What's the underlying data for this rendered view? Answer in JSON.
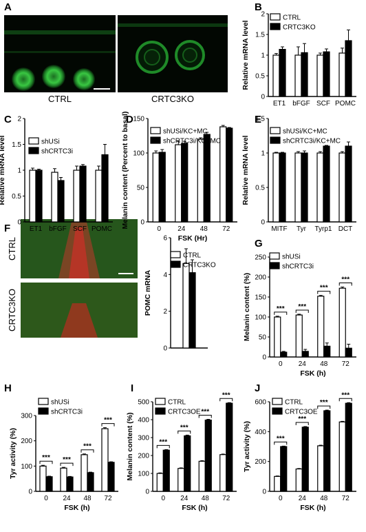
{
  "panels": {
    "A": {
      "letter": "A",
      "labels": [
        "CTRL",
        "CRTC3KO"
      ]
    },
    "F": {
      "letter": "F",
      "labels": [
        "CTRL",
        "CRTC3KO"
      ]
    }
  },
  "colors": {
    "bar_dark": "#000000",
    "bar_light": "#ffffff",
    "fluor_green": "#3fd24a",
    "fluor_red": "#c0392b"
  },
  "chart_data": [
    {
      "id": "B",
      "letter": "B",
      "type": "bar",
      "ylabel": "Relative mRNA level",
      "xlabel": "",
      "categories": [
        "ET1",
        "bFGF",
        "SCF",
        "POMC"
      ],
      "ylim": [
        0,
        2.0
      ],
      "yticks": [
        0,
        0.5,
        1.0,
        1.5,
        2.0
      ],
      "series": [
        {
          "name": "CTRL",
          "values": [
            1.0,
            1.0,
            1.0,
            1.05
          ],
          "err": [
            0.04,
            0.2,
            0.05,
            0.12
          ]
        },
        {
          "name": "CRTC3KO",
          "values": [
            1.14,
            1.06,
            1.08,
            1.35
          ],
          "err": [
            0.06,
            0.22,
            0.07,
            0.26
          ]
        }
      ]
    },
    {
      "id": "C",
      "letter": "C",
      "type": "bar",
      "ylabel": "Relative mRNA level",
      "xlabel": "",
      "categories": [
        "ET1",
        "bFGF",
        "SCF",
        "POMC"
      ],
      "ylim": [
        0,
        2.0
      ],
      "yticks": [
        0,
        0.5,
        1.0,
        1.5,
        2.0
      ],
      "series": [
        {
          "name": "shUSi",
          "values": [
            1.0,
            0.96,
            1.0,
            1.0
          ],
          "err": [
            0.04,
            0.07,
            0.08,
            0.08
          ]
        },
        {
          "name": "shCRTC3i",
          "values": [
            1.0,
            0.8,
            1.08,
            1.3
          ],
          "err": [
            0.02,
            0.06,
            0.03,
            0.2
          ]
        }
      ]
    },
    {
      "id": "D",
      "letter": "D",
      "type": "bar",
      "ylabel": "Melanin content (Percent to basal)",
      "xlabel": "FSK (Hr)",
      "categories": [
        "0",
        "24",
        "48",
        "72"
      ],
      "ylim": [
        0,
        150
      ],
      "yticks": [
        0,
        50,
        100,
        150
      ],
      "series": [
        {
          "name": "shUSi/KC+MC",
          "values": [
            100,
            112,
            120,
            138
          ],
          "err": [
            3,
            5,
            2,
            2
          ]
        },
        {
          "name": "shCRTC3i/KC+MC",
          "values": [
            101,
            114,
            127,
            136
          ],
          "err": [
            4,
            3,
            3,
            1
          ]
        }
      ]
    },
    {
      "id": "E",
      "letter": "E",
      "type": "bar",
      "ylabel": "Relative mRNA level",
      "xlabel": "",
      "categories": [
        "MITF",
        "Tyr",
        "Tyrp1",
        "DCT"
      ],
      "ylim": [
        0,
        1.5
      ],
      "yticks": [
        0,
        0.5,
        1.0,
        1.5
      ],
      "series": [
        {
          "name": "shUSi/KC+MC",
          "values": [
            1.0,
            1.0,
            1.0,
            1.0
          ],
          "err": [
            0.01,
            0.02,
            0.02,
            0.02
          ]
        },
        {
          "name": "shCRTC3i/KC+MC",
          "values": [
            1.0,
            1.0,
            1.1,
            1.1
          ],
          "err": [
            0.01,
            0.03,
            0.01,
            0.06
          ]
        }
      ]
    },
    {
      "id": "Fbar",
      "letter": "",
      "type": "bar",
      "ylabel": "POMC mRNA",
      "xlabel": "",
      "categories": [
        ""
      ],
      "ylim": [
        0,
        6
      ],
      "yticks": [
        0,
        2,
        4,
        6
      ],
      "series": [
        {
          "name": "CTRL",
          "values": [
            4.6
          ],
          "err": [
            0.8
          ]
        },
        {
          "name": "CRTC3KO",
          "values": [
            4.1
          ],
          "err": [
            0.7
          ]
        }
      ]
    },
    {
      "id": "G",
      "letter": "G",
      "type": "bar",
      "ylabel": "Melanin content (%)",
      "xlabel": "FSK (h)",
      "categories": [
        "0",
        "24",
        "48",
        "72"
      ],
      "ylim": [
        0,
        250
      ],
      "yticks": [
        0,
        50,
        100,
        150,
        200,
        250
      ],
      "sig": "***",
      "series": [
        {
          "name": "shUSi",
          "values": [
            100,
            105,
            152,
            172
          ],
          "err": [
            2,
            2,
            2,
            3
          ]
        },
        {
          "name": "shCRTC3i",
          "values": [
            12,
            14,
            27,
            22
          ],
          "err": [
            2,
            5,
            8,
            10
          ]
        }
      ]
    },
    {
      "id": "H",
      "letter": "H",
      "type": "bar",
      "ylabel": "Tyr activity (%)",
      "xlabel": "FSK (h)",
      "categories": [
        "0",
        "24",
        "48",
        "72"
      ],
      "ylim": [
        0,
        300
      ],
      "yticks": [
        0,
        100,
        200,
        300
      ],
      "sig": "***",
      "series": [
        {
          "name": "shUSi",
          "values": [
            100,
            92,
            145,
            248
          ],
          "err": [
            3,
            3,
            3,
            4
          ]
        },
        {
          "name": "shCRTC3i",
          "values": [
            58,
            57,
            74,
            115
          ],
          "err": [
            2,
            2,
            2,
            2
          ]
        }
      ]
    },
    {
      "id": "I",
      "letter": "I",
      "type": "bar",
      "ylabel": "Melanin content (%)",
      "xlabel": "FSK (h)",
      "categories": [
        "0",
        "24",
        "48",
        "72"
      ],
      "ylim": [
        0,
        500
      ],
      "yticks": [
        0,
        100,
        200,
        300,
        400,
        500
      ],
      "sig": "***",
      "series": [
        {
          "name": "CTRL",
          "values": [
            100,
            128,
            168,
            205
          ],
          "err": [
            3,
            3,
            3,
            3
          ]
        },
        {
          "name": "CRTC3OE",
          "values": [
            230,
            310,
            398,
            492
          ],
          "err": [
            3,
            4,
            4,
            3
          ]
        }
      ]
    },
    {
      "id": "J",
      "letter": "J",
      "type": "bar",
      "ylabel": "Tyr activity (%)",
      "xlabel": "FSK (h)",
      "categories": [
        "0",
        "24",
        "48",
        "72"
      ],
      "ylim": [
        0,
        600
      ],
      "yticks": [
        0,
        200,
        400,
        600
      ],
      "sig": "***",
      "series": [
        {
          "name": "CTRL",
          "values": [
            100,
            150,
            305,
            465
          ],
          "err": [
            3,
            3,
            4,
            4
          ]
        },
        {
          "name": "CRTC3OE",
          "values": [
            300,
            430,
            540,
            590
          ],
          "err": [
            3,
            4,
            4,
            4
          ]
        }
      ]
    }
  ]
}
